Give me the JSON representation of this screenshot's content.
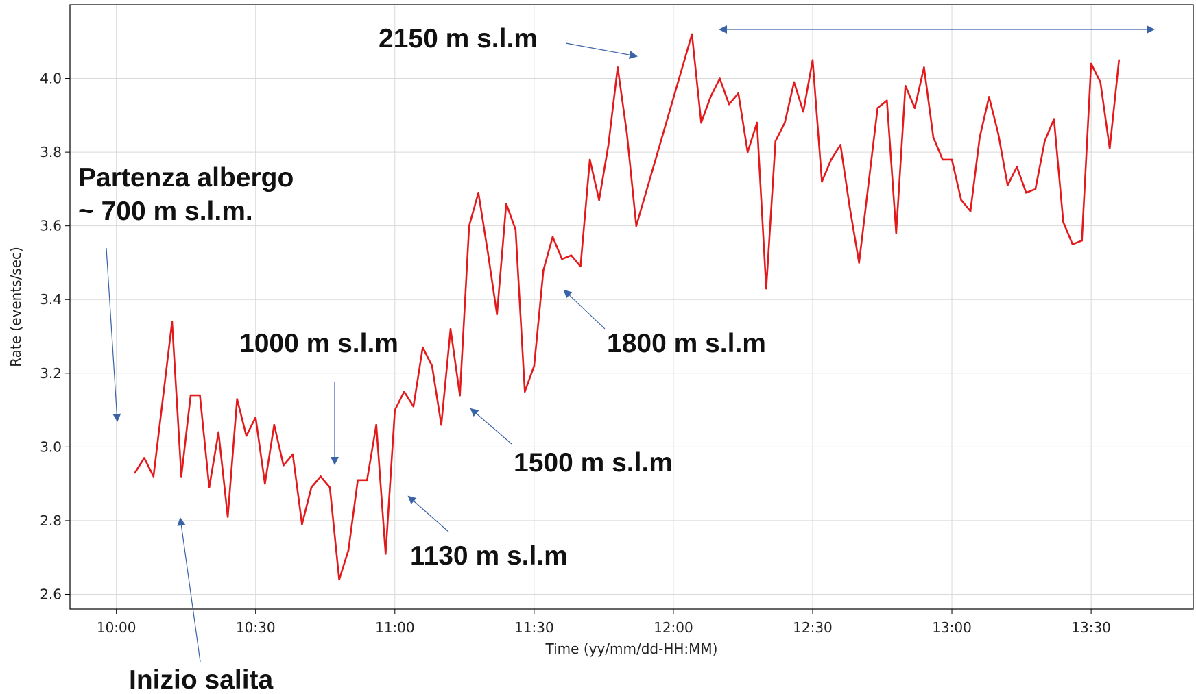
{
  "chart_data": {
    "type": "line",
    "xlabel": "Time (yy/mm/dd-HH:MM)",
    "ylabel": "Rate (events/sec)",
    "x_ticks": [
      "10:00",
      "10:30",
      "11:00",
      "11:30",
      "12:00",
      "12:30",
      "13:00",
      "13:30"
    ],
    "y_ticks": [
      "2.6",
      "2.8",
      "3.0",
      "3.2",
      "3.4",
      "3.6",
      "3.8",
      "4.0"
    ],
    "xlim": [
      "09:50",
      "13:52"
    ],
    "ylim": [
      2.56,
      4.2
    ],
    "grid": true,
    "colors": {
      "line": "#e31a1c",
      "arrow": "#3a62a6",
      "grid": "#d9d9d9"
    },
    "series": [
      {
        "x": [
          "10:04",
          "10:06",
          "10:08",
          "10:10",
          "10:12",
          "10:14",
          "10:16",
          "10:18",
          "10:20",
          "10:22",
          "10:24",
          "10:26",
          "10:28",
          "10:30",
          "10:32",
          "10:34",
          "10:36",
          "10:38",
          "10:40",
          "10:42",
          "10:44",
          "10:46",
          "10:48",
          "10:50",
          "10:52",
          "10:54",
          "10:56",
          "10:58",
          "11:00",
          "11:02",
          "11:04",
          "11:06",
          "11:08",
          "11:10",
          "11:12",
          "11:14",
          "11:16",
          "11:18",
          "11:20",
          "11:22",
          "11:24",
          "11:26",
          "11:28",
          "11:30",
          "11:32",
          "11:34",
          "11:36",
          "11:38",
          "11:40",
          "11:42",
          "11:44",
          "11:46",
          "11:48",
          "11:50",
          "11:52",
          "12:04",
          "12:06",
          "12:08",
          "12:10",
          "12:12",
          "12:14",
          "12:16",
          "12:18",
          "12:20",
          "12:22",
          "12:24",
          "12:26",
          "12:28",
          "12:30",
          "12:32",
          "12:34",
          "12:36",
          "12:38",
          "12:40",
          "12:42",
          "12:44",
          "12:46",
          "12:48",
          "12:50",
          "12:52",
          "12:54",
          "12:56",
          "12:58",
          "13:00",
          "13:02",
          "13:04",
          "13:06",
          "13:08",
          "13:10",
          "13:12",
          "13:14",
          "13:16",
          "13:18",
          "13:20",
          "13:22",
          "13:24",
          "13:26",
          "13:28",
          "13:30",
          "13:32",
          "13:34",
          "13:36"
        ],
        "values": [
          2.93,
          2.97,
          2.92,
          3.13,
          3.34,
          2.92,
          3.14,
          3.14,
          2.89,
          3.04,
          2.81,
          3.13,
          3.03,
          3.08,
          2.9,
          3.06,
          2.95,
          2.98,
          2.79,
          2.89,
          2.92,
          2.89,
          2.64,
          2.72,
          2.91,
          2.91,
          3.06,
          2.71,
          3.1,
          3.15,
          3.11,
          3.27,
          3.22,
          3.06,
          3.32,
          3.14,
          3.6,
          3.69,
          3.53,
          3.36,
          3.66,
          3.59,
          3.15,
          3.22,
          3.48,
          3.57,
          3.51,
          3.52,
          3.49,
          3.78,
          3.67,
          3.82,
          4.03,
          3.85,
          3.6,
          4.12,
          3.88,
          3.95,
          4.0,
          3.93,
          3.96,
          3.8,
          3.88,
          3.43,
          3.83,
          3.88,
          3.99,
          3.91,
          4.05,
          3.72,
          3.78,
          3.82,
          3.65,
          3.5,
          3.71,
          3.92,
          3.94,
          3.58,
          3.98,
          3.92,
          4.03,
          3.84,
          3.78,
          3.78,
          3.67,
          3.64,
          3.84,
          3.95,
          3.85,
          3.71,
          3.76,
          3.69,
          3.7,
          3.83,
          3.89,
          3.61,
          3.55,
          3.56,
          4.04,
          3.99,
          3.81,
          4.05
        ]
      }
    ],
    "annotations": [
      {
        "lines": [
          "2150 m s.l.m"
        ]
      },
      {
        "lines": [
          "Partenza albergo",
          "~ 700 m s.l.m."
        ]
      },
      {
        "lines": [
          "1000 m s.l.m"
        ]
      },
      {
        "lines": [
          "1800 m s.l.m"
        ]
      },
      {
        "lines": [
          "1500 m s.l.m"
        ]
      },
      {
        "lines": [
          "1130 m s.l.m"
        ]
      },
      {
        "lines": [
          "Inizio salita"
        ]
      }
    ]
  }
}
